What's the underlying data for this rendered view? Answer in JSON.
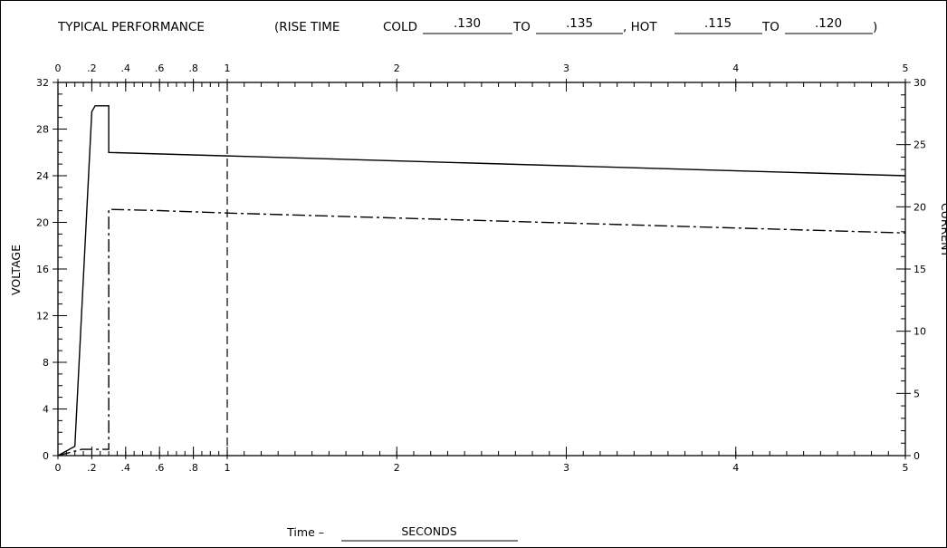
{
  "header": {
    "title": "TYPICAL PERFORMANCE",
    "rise_prefix": "(RISE TIME",
    "cold_label": "COLD",
    "cold_from": ".130",
    "to_label": "TO",
    "cold_to": ".135",
    "hot_label": ", HOT",
    "hot_from": ".115",
    "hot_to": ".120",
    "close_paren": ")"
  },
  "chart_data": {
    "type": "line",
    "xlabel_prefix": "Time –",
    "xlabel": "SECONDS",
    "ylabel": "VOLTAGE",
    "y2label": "CURRENT",
    "x_ticks": [
      {
        "value": 0,
        "label": "0"
      },
      {
        "value": 0.2,
        "label": ".2"
      },
      {
        "value": 0.4,
        "label": ".4"
      },
      {
        "value": 0.6,
        "label": ".6"
      },
      {
        "value": 0.8,
        "label": ".8"
      },
      {
        "value": 1,
        "label": "1"
      },
      {
        "value": 2,
        "label": "2"
      },
      {
        "value": 3,
        "label": "3"
      },
      {
        "value": 4,
        "label": "4"
      },
      {
        "value": 5,
        "label": "5"
      }
    ],
    "y_ticks": [
      0,
      4,
      8,
      12,
      16,
      20,
      24,
      28,
      32
    ],
    "y2_ticks": [
      0,
      5,
      10,
      15,
      20,
      25,
      30
    ],
    "xlim": [
      0,
      5
    ],
    "ylim": [
      0,
      32
    ],
    "y2lim": [
      0,
      30
    ],
    "reference_line_x": 1,
    "series": [
      {
        "axis": "left",
        "style": "solid",
        "x": [
          0,
          0.1,
          0.2,
          0.22,
          0.3,
          0.3,
          5
        ],
        "y": [
          0,
          0.8,
          29.5,
          30,
          30,
          26,
          24
        ]
      },
      {
        "axis": "right",
        "style": "dash-dot",
        "x": [
          0,
          0.14,
          0.14,
          0.3,
          0.3,
          0.6,
          1,
          2,
          3,
          4,
          5
        ],
        "y": [
          0,
          0.5,
          0.5,
          0.5,
          19.8,
          19.7,
          19.5,
          19.1,
          18.7,
          18.3,
          17.9
        ]
      }
    ]
  }
}
